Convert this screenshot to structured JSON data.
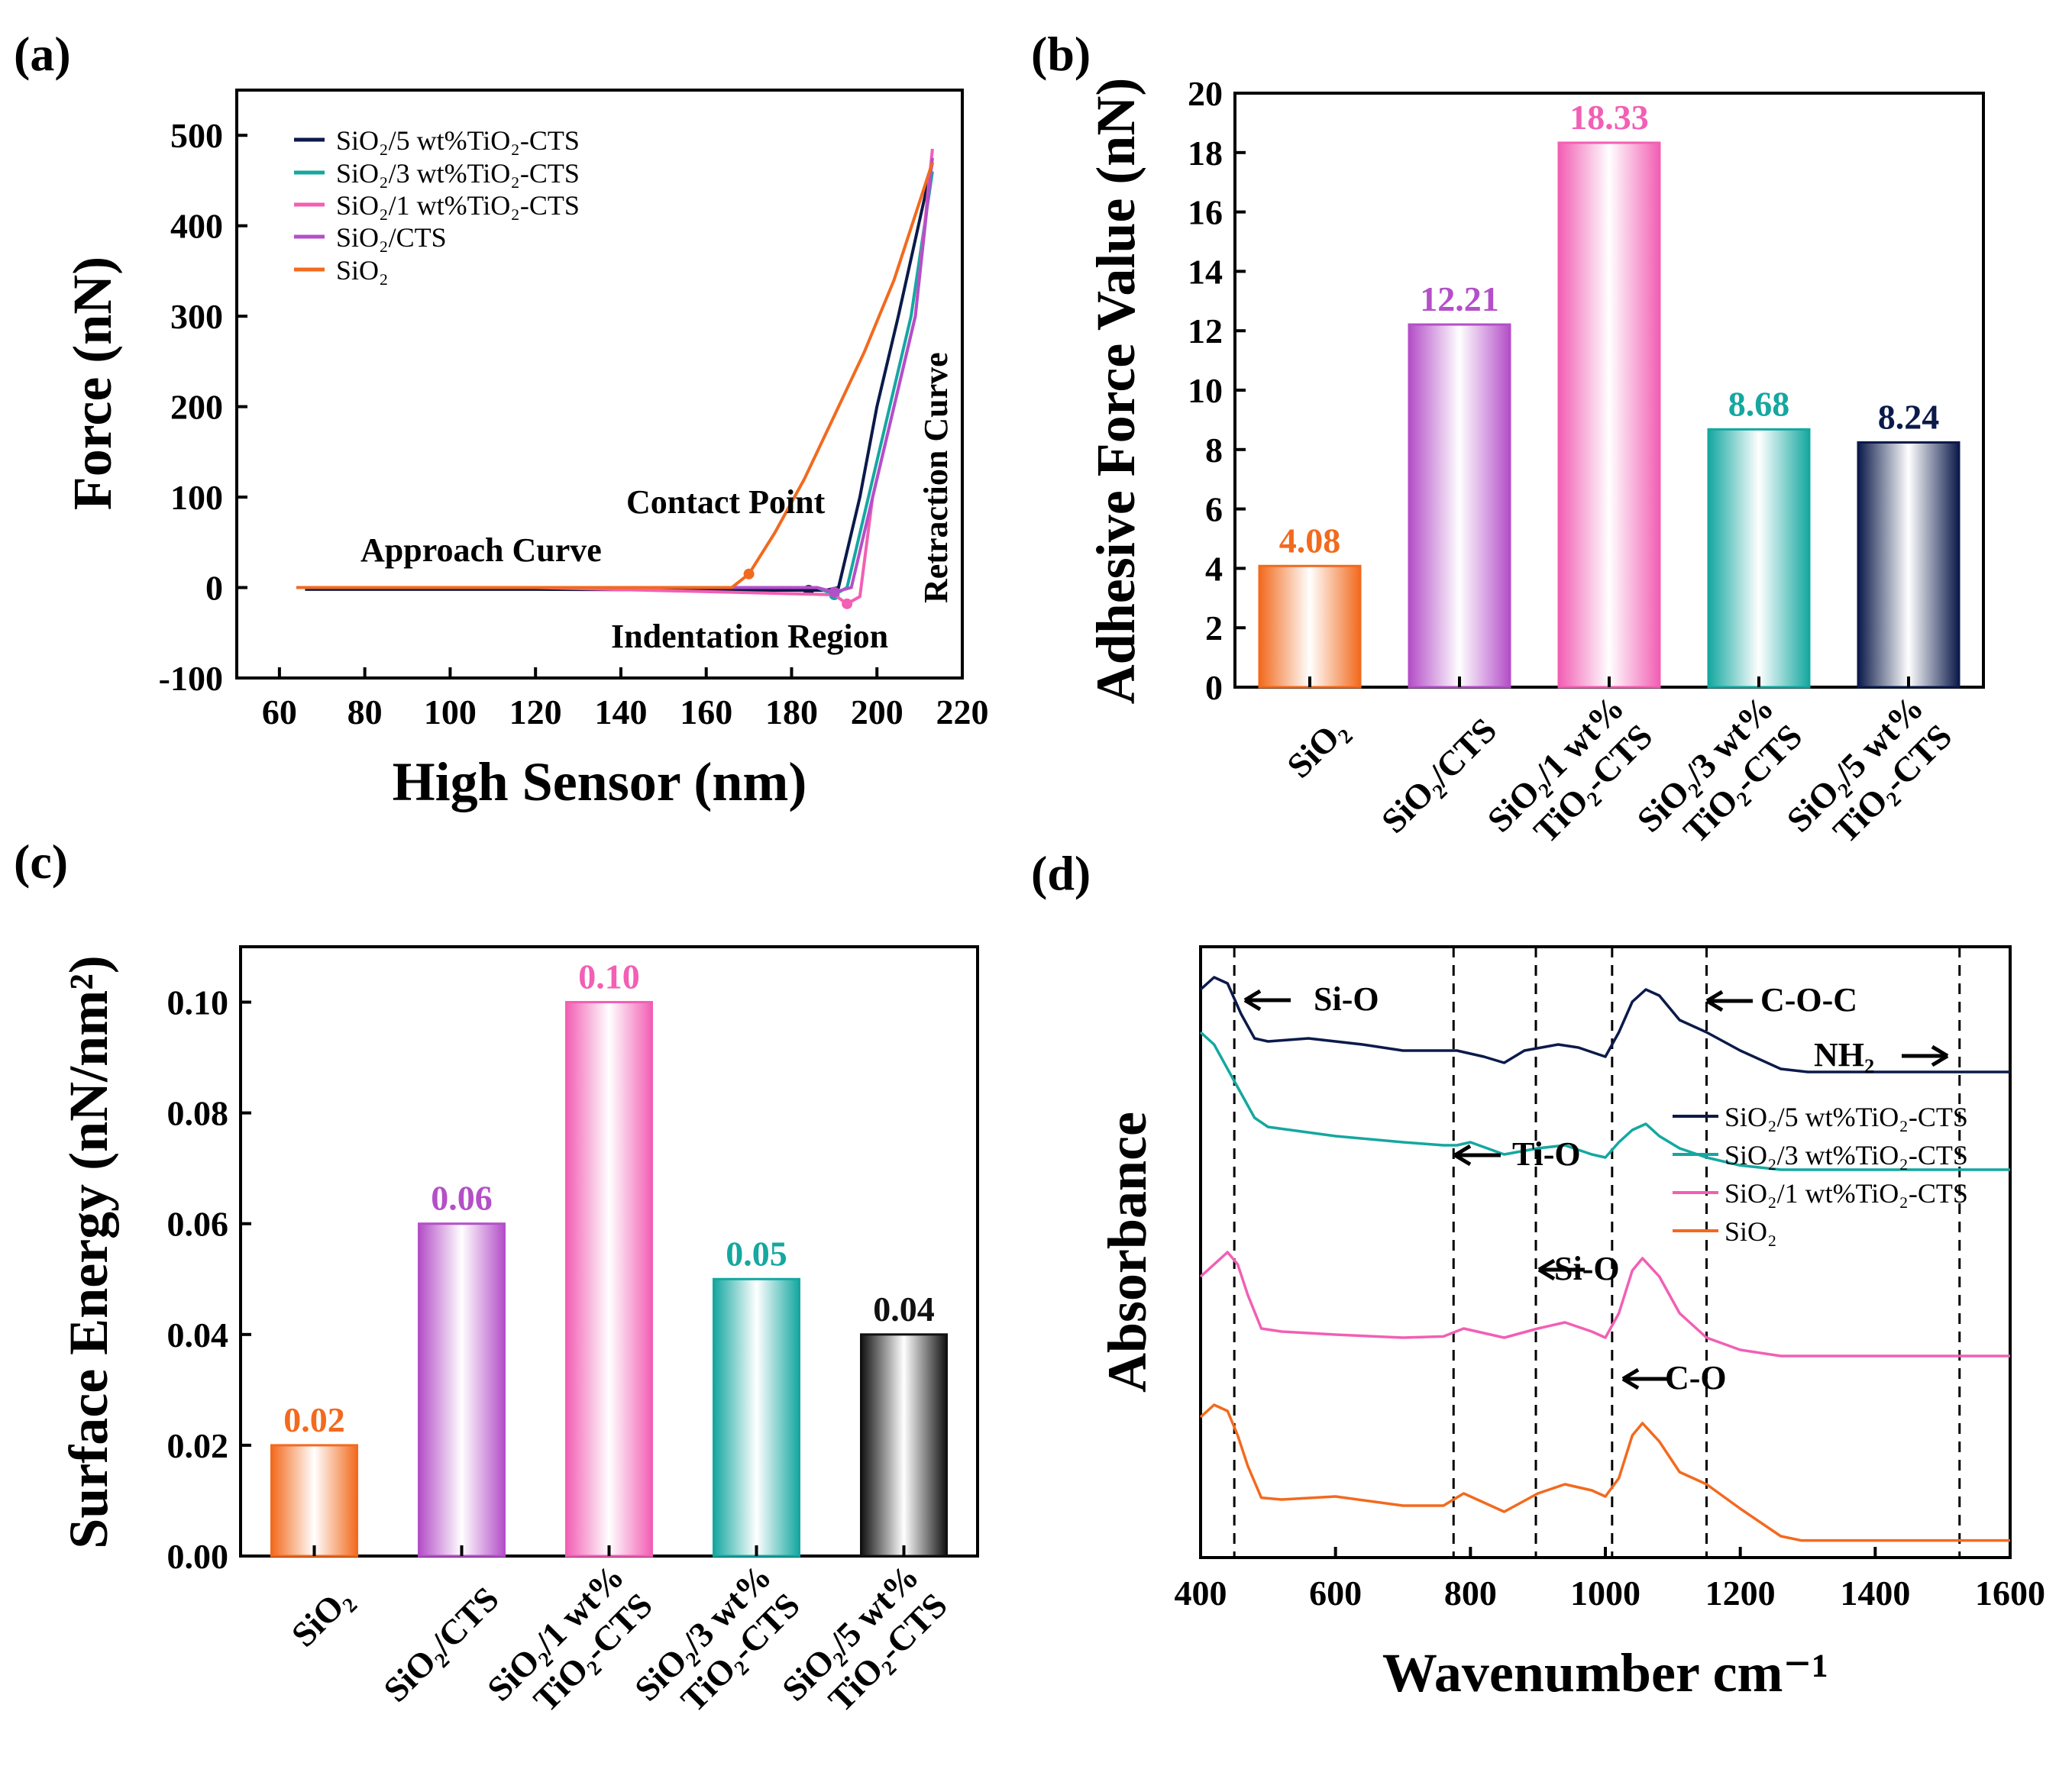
{
  "figure_labels": {
    "a": "(a)",
    "b": "(b)",
    "c": "(c)",
    "d": "(d)"
  },
  "colors": {
    "sio2": "#f26a1e",
    "sio2_cts": "#b44fc8",
    "tio2_1": "#f25fb4",
    "tio2_3": "#15a7a0",
    "tio2_5": "#0b1a4a",
    "tio2_5_c": "#111111"
  },
  "chart_data": [
    {
      "id": "a",
      "type": "line",
      "xlabel": "High Sensor (nm)",
      "ylabel": "Force (nN)",
      "xlim": [
        50,
        220
      ],
      "ylim": [
        -100,
        550
      ],
      "xticks": [
        60,
        80,
        100,
        120,
        140,
        160,
        180,
        200,
        220
      ],
      "yticks": [
        -100,
        0,
        100,
        200,
        300,
        400,
        500
      ],
      "legend": [
        {
          "label": "SiO₂/5 wt%TiO₂-CTS",
          "color_key": "tio2_5"
        },
        {
          "label": "SiO₂/3 wt%TiO₂-CTS",
          "color_key": "tio2_3"
        },
        {
          "label": "SiO₂/1 wt%TiO₂-CTS",
          "color_key": "tio2_1"
        },
        {
          "label": "SiO₂/CTS",
          "color_key": "sio2_cts"
        },
        {
          "label": "SiO₂",
          "color_key": "sio2"
        }
      ],
      "series": [
        {
          "name": "SiO₂/5 wt%TiO₂-CTS",
          "color_key": "tio2_5",
          "x": [
            66,
            120,
            184,
            188,
            191,
            196,
            200,
            205,
            213
          ],
          "y": [
            -2,
            -2,
            -3,
            -3,
            0,
            100,
            200,
            300,
            470
          ]
        },
        {
          "name": "SiO₂/3 wt%TiO₂-CTS",
          "color_key": "tio2_3",
          "x": [
            65,
            120,
            186,
            190,
            193,
            198,
            203,
            208,
            213
          ],
          "y": [
            0,
            0,
            0,
            -8,
            0,
            100,
            200,
            300,
            460
          ]
        },
        {
          "name": "SiO₂/1 wt%TiO₂-CTS",
          "color_key": "tio2_1",
          "x": [
            64,
            120,
            190,
            193,
            196,
            199,
            204,
            209,
            213
          ],
          "y": [
            0,
            0,
            -8,
            -18,
            -10,
            100,
            200,
            300,
            485
          ]
        },
        {
          "name": "SiO₂/CTS",
          "color_key": "sio2_cts",
          "x": [
            64,
            120,
            186,
            190,
            194,
            199,
            204,
            209,
            213
          ],
          "y": [
            0,
            0,
            0,
            -5,
            0,
            100,
            200,
            300,
            475
          ]
        },
        {
          "name": "SiO₂",
          "color_key": "sio2",
          "x": [
            64,
            120,
            166,
            170,
            176,
            183,
            190,
            197,
            204,
            213
          ],
          "y": [
            0,
            0,
            0,
            15,
            60,
            120,
            190,
            260,
            340,
            470
          ]
        }
      ],
      "annotations": [
        "Approach Curve",
        "Contact Point",
        "Indentation Region",
        "Retraction Curve"
      ]
    },
    {
      "id": "b",
      "type": "bar",
      "ylabel": "Adhesive Force Value (nN)",
      "ylim": [
        0,
        20
      ],
      "yticks": [
        0,
        2,
        4,
        6,
        8,
        10,
        12,
        14,
        16,
        18,
        20
      ],
      "categories": [
        {
          "line1": "SiO₂",
          "line2": ""
        },
        {
          "line1": "SiO₂/CTS",
          "line2": ""
        },
        {
          "line1": "SiO₂/1 wt%",
          "line2": "TiO₂-CTS"
        },
        {
          "line1": "SiO₂/3 wt%",
          "line2": "TiO₂-CTS"
        },
        {
          "line1": "SiO₂/5 wt%",
          "line2": "TiO₂-CTS"
        }
      ],
      "values": [
        4.08,
        12.21,
        18.33,
        8.68,
        8.24
      ],
      "labels": [
        "4.08",
        "12.21",
        "18.33",
        "8.68",
        "8.24"
      ],
      "color_keys": [
        "sio2",
        "sio2_cts",
        "tio2_1",
        "tio2_3",
        "tio2_5"
      ]
    },
    {
      "id": "c",
      "type": "bar",
      "ylabel": "Surface Energy (nN/nm²)",
      "ylim": [
        0,
        0.11
      ],
      "yticks": [
        0.0,
        0.02,
        0.04,
        0.06,
        0.08,
        0.1
      ],
      "ytick_labels": [
        "0.00",
        "0.02",
        "0.04",
        "0.06",
        "0.08",
        "0.10"
      ],
      "categories": [
        {
          "line1": "SiO₂",
          "line2": ""
        },
        {
          "line1": "SiO₂/CTS",
          "line2": ""
        },
        {
          "line1": "SiO₂/1 wt%",
          "line2": "TiO₂-CTS"
        },
        {
          "line1": "SiO₂/3 wt%",
          "line2": "TiO₂-CTS"
        },
        {
          "line1": "SiO₂/5 wt%",
          "line2": "TiO₂-CTS"
        }
      ],
      "values": [
        0.02,
        0.06,
        0.1,
        0.05,
        0.04
      ],
      "labels": [
        "0.02",
        "0.06",
        "0.10",
        "0.05",
        "0.04"
      ],
      "color_keys": [
        "sio2",
        "sio2_cts",
        "tio2_1",
        "tio2_3",
        "tio2_5_c"
      ]
    },
    {
      "id": "d",
      "type": "line",
      "xlabel": "Wavenumber cm⁻¹",
      "ylabel": "Absorbance",
      "xlim": [
        400,
        1600
      ],
      "xticks": [
        400,
        600,
        800,
        1000,
        1200,
        1400,
        1600
      ],
      "ylim": [
        0,
        100
      ],
      "vlines": [
        450,
        775,
        897,
        1010,
        1150,
        1525
      ],
      "legend": [
        {
          "label": "SiO₂/5 wt%TiO₂-CTS",
          "color_key": "tio2_5"
        },
        {
          "label": "SiO₂/3 wt%TiO₂-CTS",
          "color_key": "tio2_3"
        },
        {
          "label": "SiO₂/1 wt%TiO₂-CTS",
          "color_key": "tio2_1"
        },
        {
          "label": "SiO₂",
          "color_key": "sio2"
        }
      ],
      "series": [
        {
          "name": "SiO₂/5 wt%TiO₂-CTS",
          "color_key": "tio2_5",
          "x": [
            400,
            420,
            440,
            460,
            480,
            500,
            560,
            640,
            700,
            780,
            820,
            850,
            880,
            930,
            960,
            1000,
            1020,
            1040,
            1060,
            1080,
            1110,
            1150,
            1200,
            1260,
            1300,
            1600
          ],
          "y": [
            93,
            95,
            94,
            89,
            85,
            84.5,
            85,
            84,
            83,
            83,
            82,
            81,
            83,
            84,
            83.5,
            82,
            86,
            91,
            93,
            92,
            88,
            86,
            83,
            80,
            79.5,
            79.5
          ]
        },
        {
          "name": "SiO₂/3 wt%TiO₂-CTS",
          "color_key": "tio2_3",
          "x": [
            400,
            420,
            440,
            460,
            480,
            500,
            600,
            700,
            760,
            780,
            800,
            850,
            900,
            940,
            980,
            1000,
            1020,
            1040,
            1060,
            1080,
            1110,
            1150,
            1200,
            1260,
            1300,
            1600
          ],
          "y": [
            86,
            84,
            80,
            76,
            72,
            70.5,
            69,
            68,
            67.5,
            67.5,
            68,
            66,
            67,
            67.5,
            66,
            65.5,
            68,
            70,
            71,
            69,
            67,
            65.5,
            64.2,
            63.5,
            63.5,
            63.5
          ]
        },
        {
          "name": "SiO₂/1 wt%TiO₂-CTS",
          "color_key": "tio2_1",
          "x": [
            400,
            420,
            440,
            455,
            470,
            490,
            520,
            600,
            700,
            760,
            790,
            810,
            850,
            900,
            940,
            980,
            1000,
            1020,
            1040,
            1055,
            1080,
            1110,
            1150,
            1200,
            1260,
            1600
          ],
          "y": [
            46,
            48,
            50,
            48,
            43,
            37.5,
            37,
            36.5,
            36,
            36.2,
            37.5,
            37,
            36,
            37.5,
            38.5,
            37,
            36,
            40,
            47,
            49,
            46,
            40,
            36,
            34,
            33,
            33
          ]
        },
        {
          "name": "SiO₂",
          "color_key": "sio2",
          "x": [
            400,
            420,
            440,
            455,
            470,
            490,
            520,
            600,
            700,
            760,
            790,
            810,
            850,
            900,
            940,
            980,
            1000,
            1020,
            1040,
            1055,
            1080,
            1110,
            1150,
            1200,
            1260,
            1290,
            1600
          ],
          "y": [
            23,
            25,
            24,
            20,
            15,
            9.8,
            9.5,
            10,
            8.5,
            8.5,
            10.5,
            9.5,
            7.5,
            10.5,
            12,
            11,
            10,
            13,
            20,
            22,
            19,
            14,
            12,
            8,
            3.5,
            2.8,
            2.8
          ]
        }
      ],
      "annotations": [
        "Si-O",
        "Ti-O",
        "Si-O",
        "C-O",
        "C-O-C",
        "NH₂"
      ]
    }
  ]
}
